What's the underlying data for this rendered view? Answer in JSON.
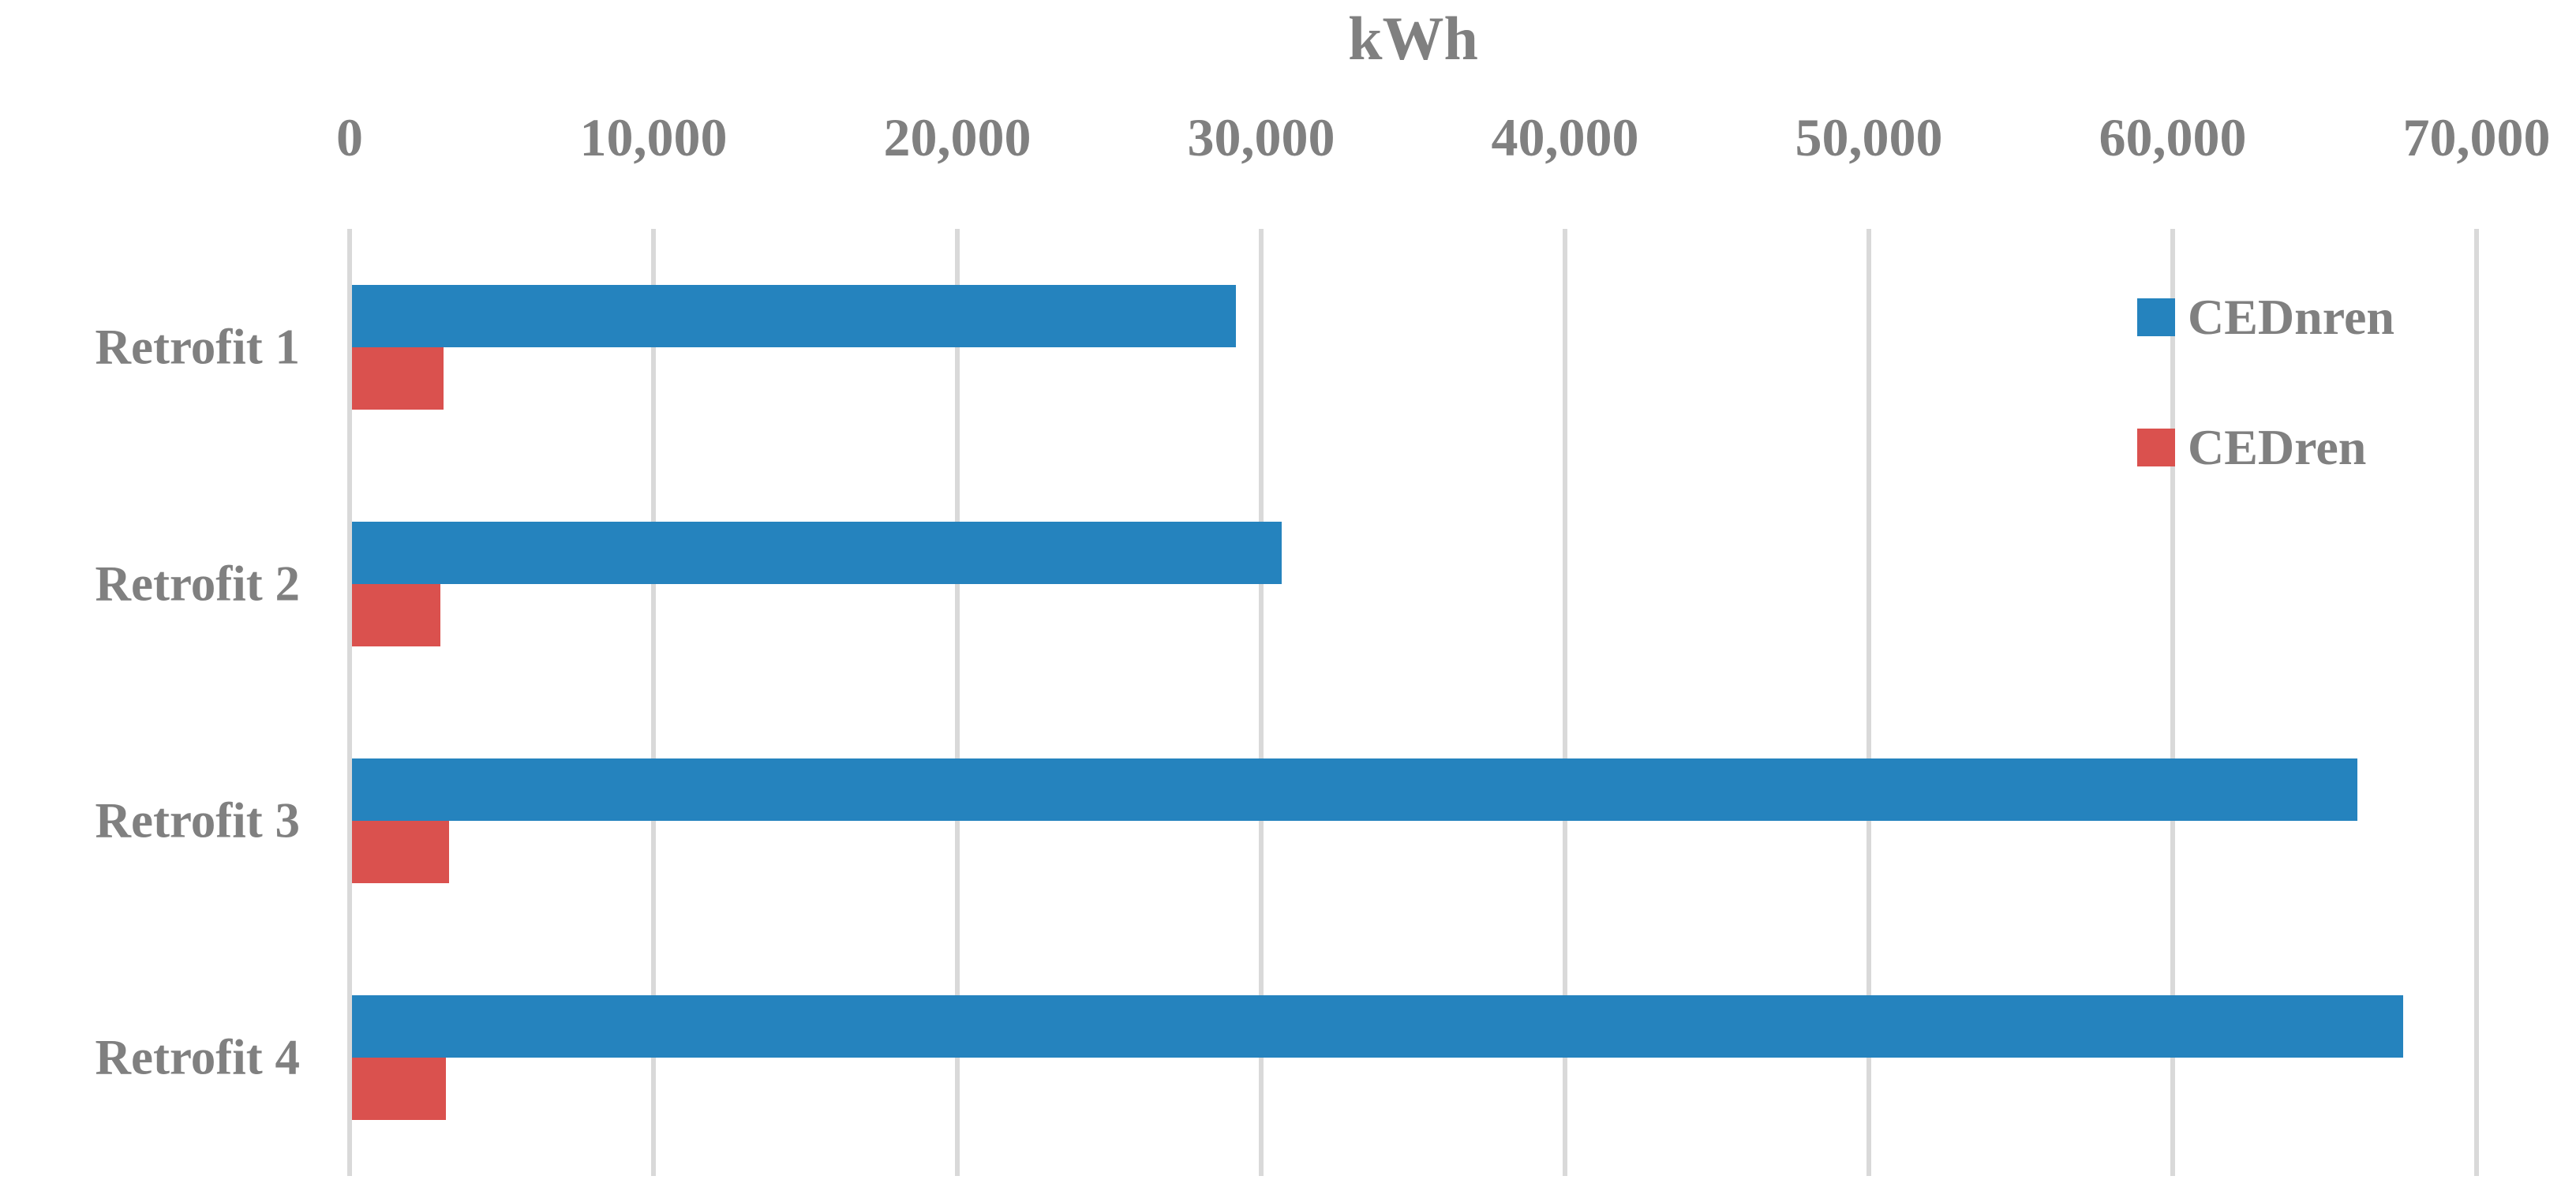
{
  "chart_data": {
    "type": "bar",
    "orientation": "horizontal",
    "title": "kWh",
    "categories": [
      "Retrofit 1",
      "Retrofit 2",
      "Retrofit 3",
      "Retrofit 4"
    ],
    "series": [
      {
        "name": "CEDnren",
        "color": "#2583BE",
        "values": [
          29100,
          30600,
          66000,
          67500
        ]
      },
      {
        "name": "CEDren",
        "color": "#DA514E",
        "values": [
          3000,
          2900,
          3200,
          3100
        ]
      }
    ],
    "x_axis": {
      "min": 0,
      "max": 70000,
      "step": 10000,
      "tick_labels": [
        "0",
        "10,000",
        "20,000",
        "30,000",
        "40,000",
        "50,000",
        "60,000",
        "70,000"
      ]
    },
    "ylabel": "",
    "xlabel_title": "kWh",
    "grid": true,
    "legend_position": "top-right",
    "text_color": "#808080",
    "gridline_color": "#D9D9D9",
    "background_color": "#FFFFFF"
  }
}
